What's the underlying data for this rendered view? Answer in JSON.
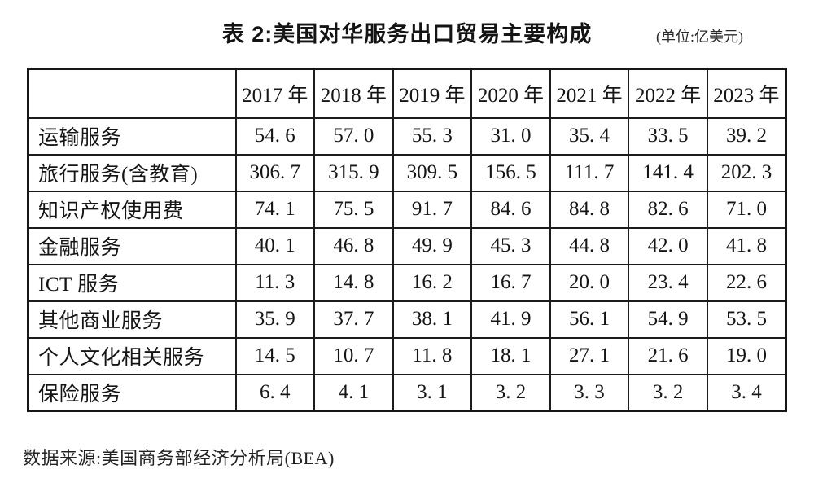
{
  "title": "表 2:美国对华服务出口贸易主要构成",
  "unit_note": "(单位:亿美元)",
  "source_note": "数据来源:美国商务部经济分析局(BEA)",
  "table": {
    "corner_label": "",
    "columns": [
      "2017 年",
      "2018 年",
      "2019 年",
      "2020 年",
      "2021 年",
      "2022 年",
      "2023 年"
    ],
    "rows": [
      {
        "label": "运输服务",
        "values": [
          "54. 6",
          "57. 0",
          "55. 3",
          "31. 0",
          "35. 4",
          "33. 5",
          "39. 2"
        ]
      },
      {
        "label": "旅行服务(含教育)",
        "values": [
          "306. 7",
          "315. 9",
          "309. 5",
          "156. 5",
          "111. 7",
          "141. 4",
          "202. 3"
        ]
      },
      {
        "label": "知识产权使用费",
        "values": [
          "74. 1",
          "75. 5",
          "91. 7",
          "84. 6",
          "84. 8",
          "82. 6",
          "71. 0"
        ]
      },
      {
        "label": "金融服务",
        "values": [
          "40. 1",
          "46. 8",
          "49. 9",
          "45. 3",
          "44. 8",
          "42. 0",
          "41. 8"
        ]
      },
      {
        "label": "ICT 服务",
        "values": [
          "11. 3",
          "14. 8",
          "16. 2",
          "16. 7",
          "20. 0",
          "23. 4",
          "22. 6"
        ]
      },
      {
        "label": "其他商业服务",
        "values": [
          "35. 9",
          "37. 7",
          "38. 1",
          "41. 9",
          "56. 1",
          "54. 9",
          "53. 5"
        ]
      },
      {
        "label": "个人文化相关服务",
        "values": [
          "14. 5",
          "10. 7",
          "11. 8",
          "18. 1",
          "27. 1",
          "21. 6",
          "19. 0"
        ]
      },
      {
        "label": "保险服务",
        "values": [
          "6. 4",
          "4. 1",
          "3. 1",
          "3. 2",
          "3. 3",
          "3. 2",
          "3. 4"
        ]
      }
    ]
  },
  "chart_data": {
    "type": "table",
    "title": "表 2:美国对华服务出口贸易主要构成",
    "unit": "亿美元",
    "categories": [
      "2017",
      "2018",
      "2019",
      "2020",
      "2021",
      "2022",
      "2023"
    ],
    "series": [
      {
        "name": "运输服务",
        "values": [
          54.6,
          57.0,
          55.3,
          31.0,
          35.4,
          33.5,
          39.2
        ]
      },
      {
        "name": "旅行服务(含教育)",
        "values": [
          306.7,
          315.9,
          309.5,
          156.5,
          111.7,
          141.4,
          202.3
        ]
      },
      {
        "name": "知识产权使用费",
        "values": [
          74.1,
          75.5,
          91.7,
          84.6,
          84.8,
          82.6,
          71.0
        ]
      },
      {
        "name": "金融服务",
        "values": [
          40.1,
          46.8,
          49.9,
          45.3,
          44.8,
          42.0,
          41.8
        ]
      },
      {
        "name": "ICT服务",
        "values": [
          11.3,
          14.8,
          16.2,
          16.7,
          20.0,
          23.4,
          22.6
        ]
      },
      {
        "name": "其他商业服务",
        "values": [
          35.9,
          37.7,
          38.1,
          41.9,
          56.1,
          54.9,
          53.5
        ]
      },
      {
        "name": "个人文化相关服务",
        "values": [
          14.5,
          10.7,
          11.8,
          18.1,
          27.1,
          21.6,
          19.0
        ]
      },
      {
        "name": "保险服务",
        "values": [
          6.4,
          4.1,
          3.1,
          3.2,
          3.3,
          3.2,
          3.4
        ]
      }
    ],
    "source": "数据来源:美国商务部经济分析局(BEA)"
  }
}
